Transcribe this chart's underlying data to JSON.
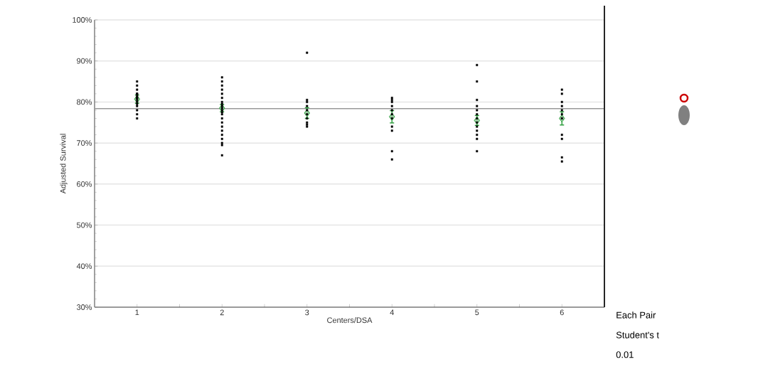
{
  "chart_data": [
    {
      "type": "scatter",
      "xlabel": "Centers/DSA",
      "ylabel": "Adjusted Survival",
      "categories": [
        "1",
        "2",
        "3",
        "4",
        "5",
        "6"
      ],
      "ylim": [
        30,
        100
      ],
      "yticks": [
        {
          "value": 30,
          "label": "30%"
        },
        {
          "value": 40,
          "label": "40%"
        },
        {
          "value": 50,
          "label": "50%"
        },
        {
          "value": 60,
          "label": "60%"
        },
        {
          "value": 70,
          "label": "70%"
        },
        {
          "value": 80,
          "label": "80%"
        },
        {
          "value": 90,
          "label": "90%"
        },
        {
          "value": 100,
          "label": "100%"
        }
      ],
      "grid": "y",
      "marker": "square",
      "ref_lines": [
        {
          "axis": "y",
          "value": 78.4,
          "color": "#999999"
        }
      ],
      "series": [
        {
          "type": "scatter",
          "color": "#000000",
          "x": [
            "1",
            "1",
            "1",
            "1",
            "1",
            "1",
            "1",
            "1",
            "1",
            "1",
            "1",
            "1",
            "1",
            "1",
            "1",
            "2",
            "2",
            "2",
            "2",
            "2",
            "2",
            "2",
            "2",
            "2",
            "2",
            "2",
            "2",
            "2",
            "2",
            "2",
            "2",
            "2",
            "2",
            "2",
            "2",
            "2",
            "2",
            "3",
            "3",
            "3",
            "3",
            "3",
            "3",
            "3",
            "3",
            "3",
            "3",
            "4",
            "4",
            "4",
            "4",
            "4",
            "4",
            "4",
            "4",
            "4",
            "4",
            "4",
            "5",
            "5",
            "5",
            "5",
            "5",
            "5",
            "5",
            "5",
            "5",
            "5",
            "5",
            "5",
            "5",
            "6",
            "6",
            "6",
            "6",
            "6",
            "6",
            "6",
            "6",
            "6",
            "6",
            "6"
          ],
          "values": [
            85,
            84,
            83,
            82,
            82,
            81.5,
            81,
            81,
            80.5,
            80,
            79.5,
            79,
            78,
            77,
            76,
            86,
            85,
            84,
            83,
            82,
            81,
            80,
            79.5,
            79,
            78.5,
            78,
            77.5,
            77,
            76,
            75,
            74,
            73,
            72,
            71,
            70,
            69.5,
            67,
            92,
            80.5,
            80,
            79,
            78,
            77,
            76,
            75,
            74.5,
            74,
            81,
            80.5,
            80,
            79,
            78,
            77,
            76,
            74,
            73,
            68,
            66,
            89,
            85,
            80.5,
            79,
            78,
            77,
            76,
            75,
            74,
            73,
            72,
            71,
            68,
            83,
            82,
            80,
            79,
            78,
            77,
            76,
            72,
            71,
            66.5,
            65.5
          ]
        },
        {
          "type": "scatter",
          "color": "#2e9e3e",
          "marker": "diamond",
          "values": [
            80.7,
            78.5,
            77.3,
            76.4,
            75.5,
            76.0
          ],
          "errors": [
            1.0,
            0.9,
            1.3,
            1.5,
            1.2,
            1.6
          ]
        }
      ]
    },
    {
      "type": "other",
      "annotations": [
        "Each Pair",
        "Student's t",
        "0.01"
      ]
    }
  ]
}
